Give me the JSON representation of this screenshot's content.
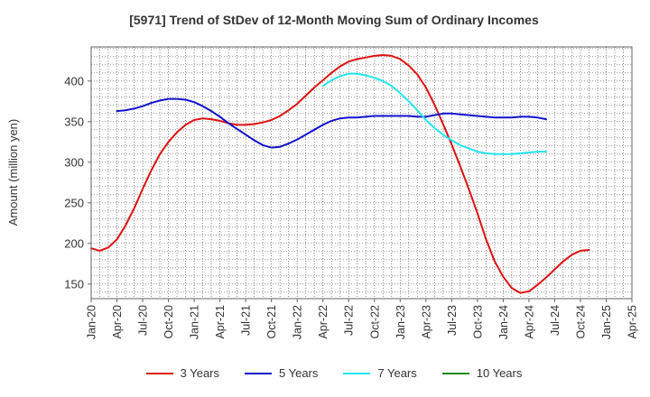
{
  "chart_data": {
    "type": "line",
    "title": "[5971]  Trend of StDev of 12-Month Moving Sum of Ordinary Incomes",
    "ylabel": "Amount (million yen)",
    "xlabel": "",
    "ylim": [
      132,
      442
    ],
    "y_ticks": [
      150,
      200,
      250,
      300,
      350,
      400
    ],
    "x_ticks": [
      "Jan-20",
      "Apr-20",
      "Jul-20",
      "Oct-20",
      "Jan-21",
      "Apr-21",
      "Jul-21",
      "Oct-21",
      "Jan-22",
      "Apr-22",
      "Jul-22",
      "Oct-22",
      "Jan-23",
      "Apr-23",
      "Jul-23",
      "Oct-23",
      "Jan-24",
      "Apr-24",
      "Jul-24",
      "Oct-24",
      "Jan-25",
      "Apr-25"
    ],
    "x_start": "Jan-20",
    "grid": true,
    "legend_position": "bottom",
    "series": [
      {
        "name": "3 Years",
        "color": "#dd1111",
        "start_index": 0,
        "values": [
          194,
          191,
          195,
          205,
          222,
          243,
          267,
          290,
          310,
          325,
          337,
          346,
          352,
          354,
          353,
          351,
          348,
          346,
          346,
          347,
          349,
          352,
          357,
          364,
          372,
          382,
          392,
          401,
          410,
          418,
          424,
          427,
          429,
          431,
          432,
          431,
          427,
          419,
          408,
          392,
          371,
          347,
          322,
          295,
          267,
          237,
          205,
          178,
          159,
          145,
          139,
          141,
          149,
          158,
          168,
          178,
          186,
          191,
          192
        ]
      },
      {
        "name": "5 Years",
        "color": "#1111cc",
        "start_index": 3,
        "values": [
          363,
          364,
          366,
          369,
          373,
          376,
          378,
          378,
          377,
          374,
          369,
          363,
          356,
          348,
          341,
          334,
          327,
          321,
          318,
          319,
          323,
          328,
          334,
          340,
          346,
          351,
          354,
          355,
          355,
          356,
          357,
          357,
          357,
          357,
          357,
          356,
          356,
          358,
          360,
          360,
          359,
          358,
          357,
          356,
          355,
          355,
          355,
          356,
          356,
          355,
          353
        ]
      },
      {
        "name": "7 Years",
        "color": "#22e5ee",
        "start_index": 27,
        "values": [
          394,
          401,
          406,
          409,
          409,
          407,
          404,
          400,
          394,
          385,
          375,
          364,
          352,
          342,
          334,
          327,
          321,
          317,
          313,
          311,
          310,
          310,
          310,
          311,
          312,
          313,
          313
        ]
      },
      {
        "name": "10 Years",
        "color": "#228822",
        "start_index": 0,
        "values": []
      }
    ]
  }
}
